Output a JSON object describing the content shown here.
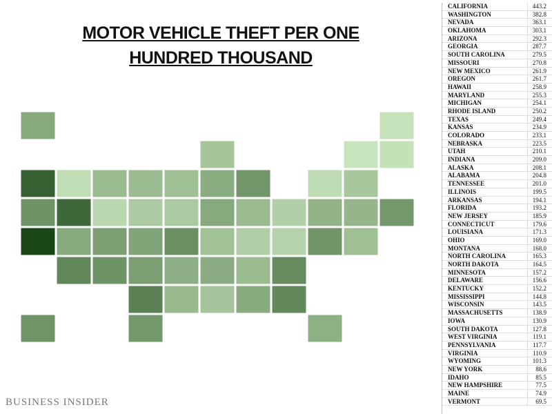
{
  "header": {
    "title": "MOTOR VEHICLE THEFT PER ONE HUNDRED THOUSAND"
  },
  "table": {
    "rows": [
      [
        "CALIFORNIA",
        "443.2"
      ],
      [
        "WASHINGTON",
        "382.8"
      ],
      [
        "NEVADA",
        "363.1"
      ],
      [
        "OKLAHOMA",
        "303.1"
      ],
      [
        "ARIZONA",
        "292.3"
      ],
      [
        "GEORGIA",
        "287.7"
      ],
      [
        "SOUTH CAROLINA",
        "279.5"
      ],
      [
        "MISSOURI",
        "270.8"
      ],
      [
        "NEW MEXICO",
        "261.9"
      ],
      [
        "OREGON",
        "261.7"
      ],
      [
        "HAWAII",
        "258.9"
      ],
      [
        "MARYLAND",
        "255.3"
      ],
      [
        "MICHIGAN",
        "254.1"
      ],
      [
        "RHODE ISLAND",
        "250.2"
      ],
      [
        "TEXAS",
        "249.4"
      ],
      [
        "KANSAS",
        "234.9"
      ],
      [
        "COLORADO",
        "233.1"
      ],
      [
        "NEBRASKA",
        "223.5"
      ],
      [
        "UTAH",
        "210.1"
      ],
      [
        "INDIANA",
        "209.0"
      ],
      [
        "ALASKA",
        "208.1"
      ],
      [
        "ALABAMA",
        "204.8"
      ],
      [
        "TENNESSEE",
        "201.0"
      ],
      [
        "ILLINOIS",
        "199.5"
      ],
      [
        "ARKANSAS",
        "194.1"
      ],
      [
        "FLORIDA",
        "193.2"
      ],
      [
        "NEW JERSEY",
        "185.9"
      ],
      [
        "CONNECTICUT",
        "179.6"
      ],
      [
        "LOUISIANA",
        "171.3"
      ],
      [
        "OHIO",
        "169.0"
      ],
      [
        "MONTANA",
        "168.0"
      ],
      [
        "NORTH CAROLINA",
        "165.3"
      ],
      [
        "NORTH DAKOTA",
        "164.5"
      ],
      [
        "MINNESOTA",
        "157.2"
      ],
      [
        "DELAWARE",
        "156.6"
      ],
      [
        "KENTUCKY",
        "152.2"
      ],
      [
        "MISSISSIPPI",
        "144.8"
      ],
      [
        "WISCONSIN",
        "143.5"
      ],
      [
        "MASSACHUSETTS",
        "138.9"
      ],
      [
        "IOWA",
        "130.9"
      ],
      [
        "SOUTH DAKOTA",
        "127.8"
      ],
      [
        "WEST VIRGINIA",
        "119.1"
      ],
      [
        "PENNSYLVANIA",
        "117.7"
      ],
      [
        "VIRGINIA",
        "110.9"
      ],
      [
        "WYOMING",
        "101.3"
      ],
      [
        "NEW YORK",
        "88.6"
      ],
      [
        "IDAHO",
        "85.5"
      ],
      [
        "NEW HAMPSHIRE",
        "77.5"
      ],
      [
        "MAINE",
        "74.9"
      ],
      [
        "VERMONT",
        "69.5"
      ]
    ]
  },
  "footer": {
    "source": "BUSINESS INSIDER"
  }
}
